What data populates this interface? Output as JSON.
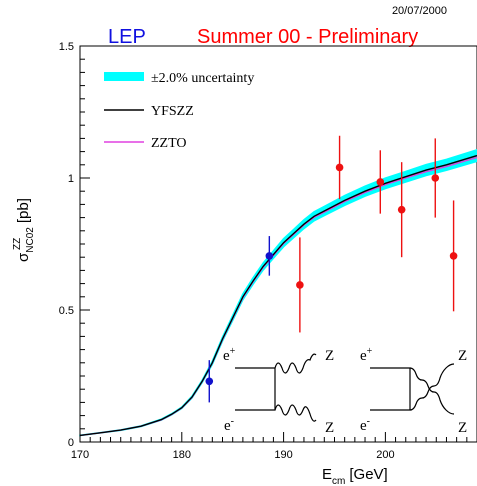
{
  "date_stamp": "20/07/2000",
  "header_left": "LEP",
  "header_right": "Summer 00 - Preliminary",
  "colors": {
    "lep_label": "#1010e0",
    "header_right": "#ff0000",
    "band": "#00ffff",
    "yfszz": "#000000",
    "zzto": "#e040e0",
    "data_red": "#ee1111",
    "data_blue": "#1111cc"
  },
  "axes": {
    "ylabel_main": "σ",
    "ylabel_sup": "ZZ",
    "ylabel_sub": "NC02",
    "ylabel_unit": "[pb]",
    "xlabel_main": "E",
    "xlabel_sub": "cm",
    "xlabel_unit": "[GeV]"
  },
  "legend": {
    "band_label": "±2.0% uncertainty",
    "yfszz_label": "YFSZZ",
    "zzto_label": "ZZTO"
  },
  "diagram": {
    "left_top_in": "e",
    "left_top_sign": "+",
    "left_bot_in": "e",
    "left_bot_sign": "-",
    "left_top_out": "Z",
    "left_bot_out": "Z",
    "right_top_in": "e",
    "right_top_sign": "+",
    "right_bot_in": "e",
    "right_bot_sign": "-",
    "right_top_out": "Z",
    "right_bot_out": "Z"
  },
  "chart_data": {
    "type": "scatter",
    "title": "Summer 00 - Preliminary",
    "xlabel": "E_cm [GeV]",
    "ylabel": "σ_NC02^ZZ [pb]",
    "xlim": [
      170,
      209
    ],
    "ylim": [
      0,
      1.5
    ],
    "x_ticks": [
      170,
      180,
      190,
      200
    ],
    "x_tick_labels": [
      "170",
      "180",
      "190",
      "200"
    ],
    "y_ticks": [
      0,
      0.5,
      1,
      1.5
    ],
    "y_tick_labels": [
      "0",
      "0.5",
      "1",
      "1.5"
    ],
    "band_relative_uncertainty": 0.02,
    "series": [
      {
        "name": "YFSZZ",
        "kind": "line",
        "x": [
          170,
          172,
          174,
          176,
          178,
          179,
          180,
          181,
          182,
          183,
          184,
          185,
          186,
          187,
          188,
          189,
          190,
          191,
          192,
          193,
          194,
          196,
          198,
          200,
          202,
          204,
          206,
          209
        ],
        "values": [
          0.025,
          0.035,
          0.045,
          0.06,
          0.085,
          0.105,
          0.13,
          0.17,
          0.23,
          0.3,
          0.39,
          0.47,
          0.55,
          0.61,
          0.665,
          0.71,
          0.755,
          0.79,
          0.825,
          0.855,
          0.875,
          0.915,
          0.95,
          0.98,
          1.005,
          1.03,
          1.05,
          1.085
        ]
      },
      {
        "name": "ZZTO",
        "kind": "line",
        "x": [
          170,
          172,
          174,
          176,
          178,
          179,
          180,
          181,
          182,
          183,
          184,
          185,
          186,
          187,
          188,
          189,
          190,
          191,
          192,
          193,
          194,
          196,
          198,
          200,
          202,
          204,
          206,
          209
        ],
        "values": [
          0.025,
          0.035,
          0.045,
          0.06,
          0.084,
          0.104,
          0.129,
          0.169,
          0.229,
          0.299,
          0.388,
          0.468,
          0.547,
          0.607,
          0.662,
          0.707,
          0.752,
          0.787,
          0.822,
          0.851,
          0.871,
          0.911,
          0.945,
          0.975,
          1.0,
          1.024,
          1.044,
          1.078
        ]
      },
      {
        "name": "",
        "kind": "points",
        "color": "blue",
        "x": [
          182.7,
          188.6
        ],
        "values": [
          0.23,
          0.705
        ],
        "err": [
          0.08,
          0.075
        ]
      },
      {
        "name": "",
        "kind": "points",
        "color": "red",
        "x": [
          191.6,
          195.5,
          199.5,
          201.6,
          204.9,
          206.7
        ],
        "values": [
          0.595,
          1.04,
          0.985,
          0.88,
          1.0,
          0.705
        ],
        "err": [
          0.18,
          0.12,
          0.12,
          0.18,
          0.15,
          0.21
        ]
      }
    ]
  }
}
